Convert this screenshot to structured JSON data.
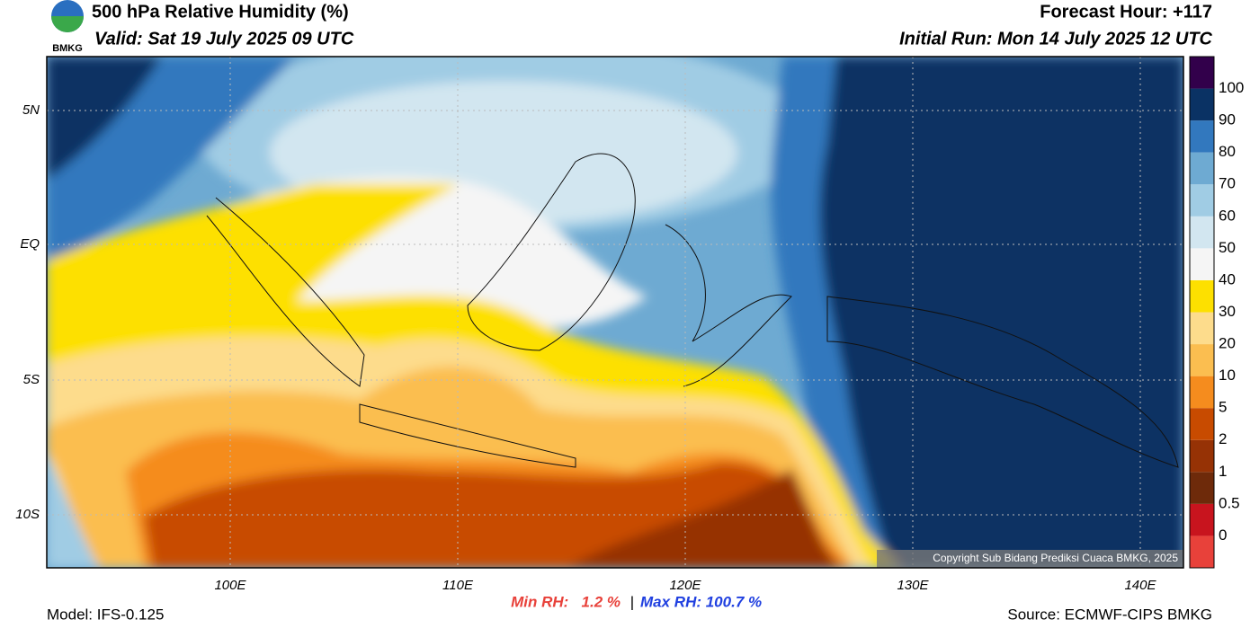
{
  "header": {
    "title": "500 hPa Relative Humidity (%)",
    "valid": "Valid: Sat 19 July 2025 09 UTC",
    "forecast": "Forecast Hour: +117",
    "run": "Initial Run: Mon 14 July 2025 12 UTC",
    "logo": "BMKG"
  },
  "map": {
    "lat_labels": [
      "5N",
      "EQ",
      "5S",
      "10S"
    ],
    "lon_labels": [
      "100E",
      "110E",
      "120E",
      "130E",
      "140E"
    ],
    "copyright": "Copyright Sub Bidang Prediksi Cuaca BMKG, 2025"
  },
  "colorbar": {
    "levels": [
      0,
      0.5,
      1,
      2,
      5,
      10,
      20,
      30,
      40,
      50,
      60,
      70,
      80,
      90,
      100
    ],
    "colors": [
      "#e8413a",
      "#c8141e",
      "#6e2a0a",
      "#963205",
      "#c84b00",
      "#f58c1e",
      "#fbbe50",
      "#fddc8c",
      "#fde000",
      "#f5f5f5",
      "#d2e6f0",
      "#a0cce4",
      "#6eaad2",
      "#3278be",
      "#0a3264",
      "#32004b"
    ]
  },
  "footer": {
    "model": "Model: IFS-0.125",
    "min": "Min RH:   1.2 %",
    "separator": "|",
    "max": "Max RH: 100.7 %",
    "source": "Source: ECMWF-CIPS BMKG"
  }
}
